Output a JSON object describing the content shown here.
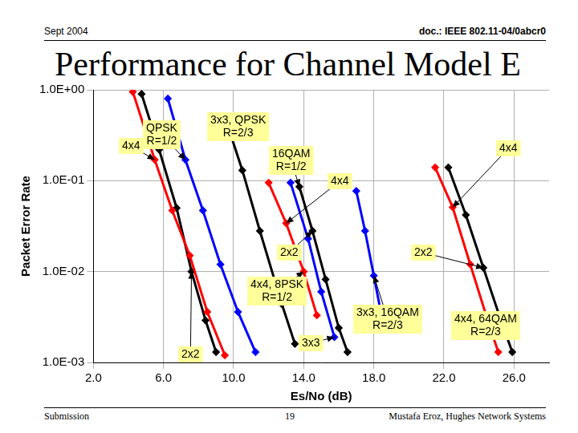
{
  "header": {
    "date": "Sept 2004",
    "doc": "doc.: IEEE 802.11-04/0abcr0"
  },
  "title": "Performance for Channel Model E",
  "footer": {
    "left": "Submission",
    "page": "19",
    "author": "Mustafa Eroz, Hughes Network Systems"
  },
  "chart_data": {
    "type": "line",
    "x_label": "Es/No (dB)",
    "y_label": "Packet Error Rate",
    "log": "y",
    "grid": true,
    "xlim": [
      2,
      28
    ],
    "xticks": [
      {
        "value": 2,
        "label": "2.0"
      },
      {
        "value": 6,
        "label": "6.0"
      },
      {
        "value": 10,
        "label": "10.0"
      },
      {
        "value": 14,
        "label": "14.0"
      },
      {
        "value": 18,
        "label": "18.0"
      },
      {
        "value": 22,
        "label": "22.0"
      },
      {
        "value": 26,
        "label": "26.0"
      }
    ],
    "ylim": [
      0.001,
      1
    ],
    "yticks": [
      {
        "value": 0.001,
        "label": "1.0E-03"
      },
      {
        "value": 0.01,
        "label": "1.0E-02"
      },
      {
        "value": 0.1,
        "label": "1.0E-01"
      },
      {
        "value": 1,
        "label": "1.0E+00"
      }
    ],
    "series": [
      {
        "color": "#ff0000",
        "marker": "diamond",
        "x": [
          4.25,
          5.5,
          6.5,
          7.5,
          8.5,
          9.5
        ],
        "values": [
          0.95,
          0.17,
          0.047,
          0.015,
          0.0036,
          0.0012
        ]
      },
      {
        "color": "#000000",
        "marker": "diamond",
        "x": [
          4.75,
          5.75,
          6.75,
          7.6,
          8.4,
          9.0
        ],
        "values": [
          0.9,
          0.22,
          0.05,
          0.01,
          0.0029,
          0.0013
        ]
      },
      {
        "color": "#0000ff",
        "marker": "diamond",
        "x": [
          6.25,
          7.25,
          8.25,
          9.25,
          10.25,
          11.25
        ],
        "values": [
          0.8,
          0.17,
          0.047,
          0.012,
          0.0036,
          0.0013
        ]
      },
      {
        "color": "#000000",
        "marker": "diamond",
        "x": [
          9.75,
          10.5,
          11.5,
          12.75,
          13.5
        ],
        "values": [
          0.36,
          0.13,
          0.028,
          0.0044,
          0.0016
        ]
      },
      {
        "color": "#ff0000",
        "marker": "diamond",
        "x": [
          12,
          13,
          14,
          14.75
        ],
        "values": [
          0.095,
          0.034,
          0.01,
          0.0033
        ]
      },
      {
        "color": "#0000ff",
        "marker": "diamond",
        "x": [
          13.25,
          14.25,
          15,
          15.75
        ],
        "values": [
          0.095,
          0.023,
          0.006,
          0.0019
        ]
      },
      {
        "color": "#000000",
        "marker": "diamond",
        "x": [
          13.75,
          14.5,
          15.25,
          16,
          16.5
        ],
        "values": [
          0.086,
          0.028,
          0.0082,
          0.0024,
          0.0013
        ]
      },
      {
        "color": "#0000ff",
        "marker": "diamond",
        "x": [
          17,
          17.5,
          18,
          18.4
        ],
        "values": [
          0.077,
          0.028,
          0.009,
          0.0036
        ]
      },
      {
        "color": "#ff0000",
        "marker": "diamond",
        "x": [
          21.5,
          22.5,
          23.5,
          24.5,
          25.1
        ],
        "values": [
          0.14,
          0.051,
          0.012,
          0.0029,
          0.0013
        ]
      },
      {
        "color": "#000000",
        "marker": "diamond",
        "x": [
          22.25,
          23.25,
          24.25,
          25.25,
          25.9
        ],
        "values": [
          0.14,
          0.042,
          0.011,
          0.0029,
          0.0013
        ]
      }
    ],
    "annotations": [
      {
        "text": "4x4"
      },
      {
        "text": "QPSK\nR=1/2"
      },
      {
        "text": "3x3, QPSK\nR=2/3"
      },
      {
        "text": "16QAM\nR=1/2"
      },
      {
        "text": "4x4"
      },
      {
        "text": "4x4"
      },
      {
        "text": "2x2"
      },
      {
        "text": "2x2"
      },
      {
        "text": "4x4, 8PSK\nR=1/2"
      },
      {
        "text": "3x3"
      },
      {
        "text": "3x3, 16QAM\nR=2/3"
      },
      {
        "text": "4x4, 64QAM\nR=2/3"
      },
      {
        "text": "2x2"
      }
    ]
  }
}
